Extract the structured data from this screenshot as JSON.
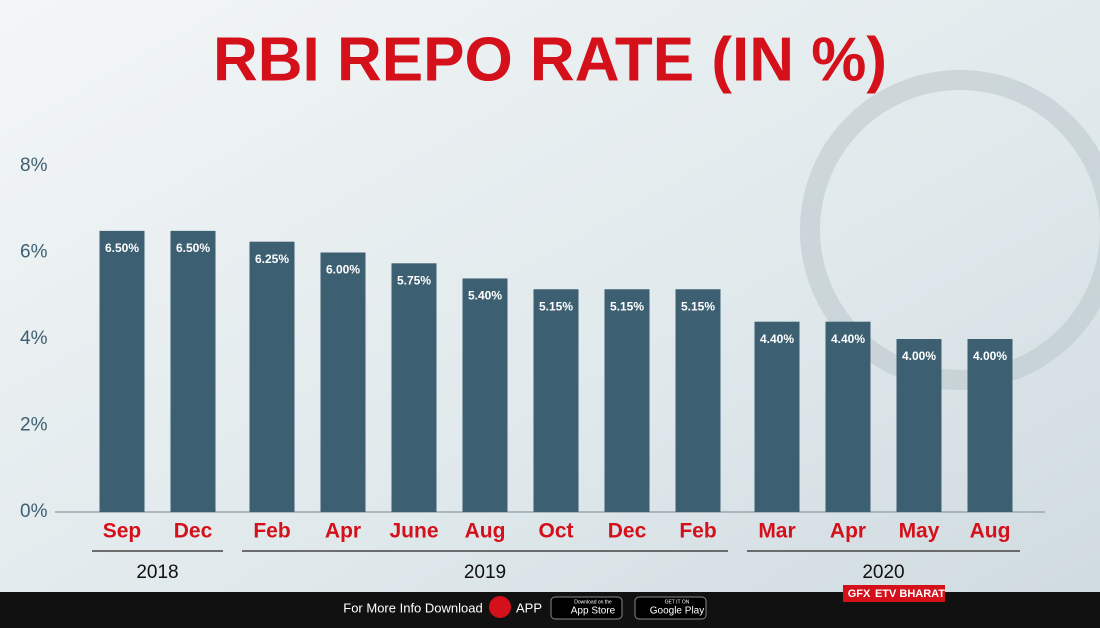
{
  "chart_data": {
    "type": "bar",
    "title": "RBI REPO RATE (IN %)",
    "categories": [
      "Sep",
      "Dec",
      "Feb",
      "Apr",
      "June",
      "Aug",
      "Oct",
      "Dec",
      "Feb",
      "Mar",
      "Apr",
      "May",
      "Aug"
    ],
    "years": [
      "2018",
      "2018",
      "2019",
      "2019",
      "2019",
      "2019",
      "2019",
      "2019",
      "2019",
      "2020",
      "2020",
      "2020",
      "2020"
    ],
    "values": [
      6.5,
      6.5,
      6.25,
      6.0,
      5.75,
      5.4,
      5.15,
      5.15,
      5.15,
      4.4,
      4.4,
      4.0,
      4.0
    ],
    "value_labels": [
      "6.50%",
      "6.50%",
      "6.25%",
      "6.00%",
      "5.75%",
      "5.40%",
      "5.15%",
      "5.15%",
      "5.15%",
      "4.40%",
      "4.40%",
      "4.00%",
      "4.00%"
    ],
    "color": "#3d5f72",
    "ylim": [
      0,
      8
    ],
    "yticks": [
      {
        "value": 0,
        "label": "0%"
      },
      {
        "value": 2,
        "label": "2%"
      },
      {
        "value": 4,
        "label": "4%"
      },
      {
        "value": 6,
        "label": "6%"
      },
      {
        "value": 8,
        "label": "8%"
      }
    ]
  },
  "footer": {
    "text": "For More Info Download",
    "app": "APP",
    "app_store_small": "Download on the",
    "app_store": "App Store",
    "google_small": "GET IT ON",
    "google": "Google Play",
    "gfx": "GFX",
    "brand": "ETV BHARAT"
  }
}
